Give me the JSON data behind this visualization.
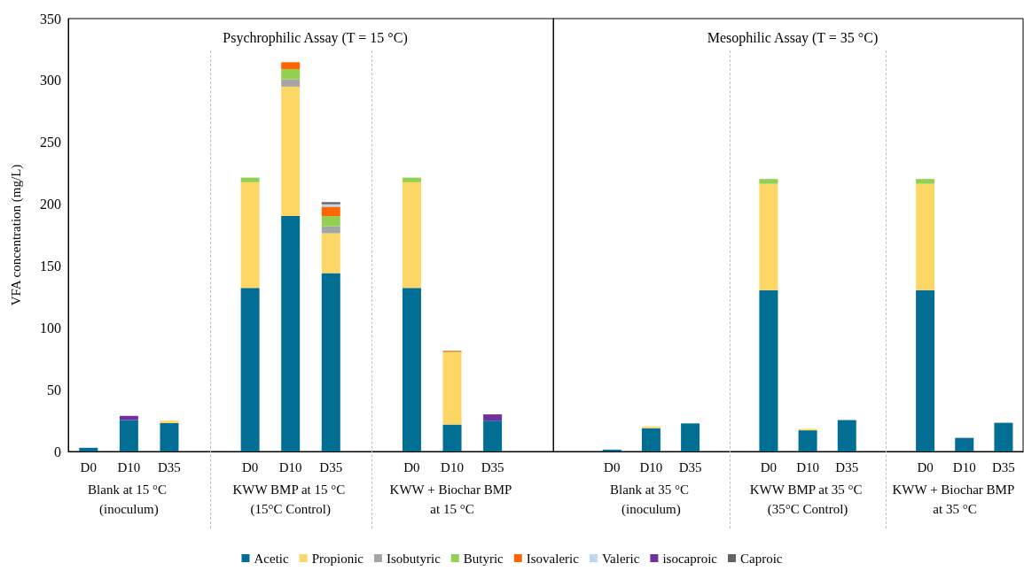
{
  "chart_data": [
    {
      "type": "bar",
      "stacked": true,
      "title": "Psychrophilic Assay (T = 15 °C)",
      "ylabel": "VFA concentration (mg/L)",
      "categories": [
        "D0",
        "D10",
        "D35",
        null,
        "D0",
        "D10",
        "D35",
        null,
        "D0",
        "D10",
        "D35",
        null
      ],
      "series": [
        {
          "name": "Acetic",
          "color": "#026e94",
          "values": [
            3,
            25.4,
            22.9,
            null,
            132.3,
            190.3,
            144.2,
            null,
            132.3,
            21.8,
            24.9,
            null
          ]
        },
        {
          "name": "Propionic",
          "color": "#fdd766",
          "values": [
            null,
            null,
            2,
            null,
            85.4,
            104.7,
            32.2,
            null,
            85.4,
            58.2,
            null,
            null
          ]
        },
        {
          "name": "Isobutyric",
          "color": "#a5a5a5",
          "values": [
            null,
            null,
            null,
            null,
            null,
            5.9,
            5.7,
            null,
            null,
            null,
            null,
            null
          ]
        },
        {
          "name": "Butyric",
          "color": "#92d050",
          "values": [
            null,
            null,
            null,
            null,
            3.7,
            8.2,
            8.2,
            null,
            3.7,
            0.6,
            null,
            null
          ]
        },
        {
          "name": "Isovaleric",
          "color": "#ff6600",
          "values": [
            null,
            null,
            null,
            null,
            null,
            5.6,
            7.6,
            null,
            null,
            0.8,
            null,
            null
          ]
        },
        {
          "name": "Valeric",
          "color": "#bdd7ee",
          "values": [
            null,
            null,
            null,
            null,
            null,
            null,
            2,
            null,
            null,
            null,
            null,
            null
          ]
        },
        {
          "name": "isocaproic",
          "color": "#7030a0",
          "values": [
            null,
            3.4,
            null,
            null,
            null,
            null,
            null,
            null,
            null,
            null,
            5.1,
            null
          ]
        },
        {
          "name": "Caproic",
          "color": "#636363",
          "values": [
            null,
            null,
            null,
            null,
            null,
            null,
            1.7,
            null,
            null,
            null,
            null,
            null
          ]
        }
      ],
      "ylim": [
        0,
        350
      ],
      "yticks": [
        0,
        50,
        100,
        150,
        200,
        250,
        300,
        350
      ],
      "annotations": [
        "Blank at 15 °C (inoculum)",
        "KWW BMP at 15 °C (15°C Control)",
        "KWW + Biochar BMP at 15 °C"
      ],
      "legend": "bottom"
    },
    {
      "type": "bar",
      "stacked": true,
      "title": "Mesophilic Assay (T = 35 °C)",
      "categories": [
        null,
        "D0",
        "D10",
        "D35",
        null,
        "D0",
        "D10",
        "D35",
        null,
        "D0",
        "D10",
        "D35"
      ],
      "series": [
        {
          "color": "#026e94",
          "values": [
            null,
            1.5,
            18.8,
            22.7,
            null,
            130.4,
            17.1,
            25.4,
            null,
            130.4,
            11,
            23.2
          ]
        },
        {
          "color": "#fdd766",
          "values": [
            null,
            null,
            1.5,
            null,
            null,
            86,
            1.2,
            null,
            null,
            86,
            null,
            null
          ]
        },
        {
          "color": "#92d050",
          "values": [
            null,
            null,
            null,
            null,
            null,
            3.9,
            null,
            null,
            null,
            3.9,
            null,
            null
          ]
        }
      ],
      "ylim": [
        0,
        350
      ],
      "yticks": [
        0,
        50,
        100,
        150,
        200,
        250,
        300,
        350
      ],
      "tick_labels": "x",
      "annotations": [
        "Blank at 35 °C (inoculum)",
        "KWW BMP at 35 °C (35°C Control)",
        "KWW + Biochar BMP at 35 °C"
      ]
    }
  ]
}
